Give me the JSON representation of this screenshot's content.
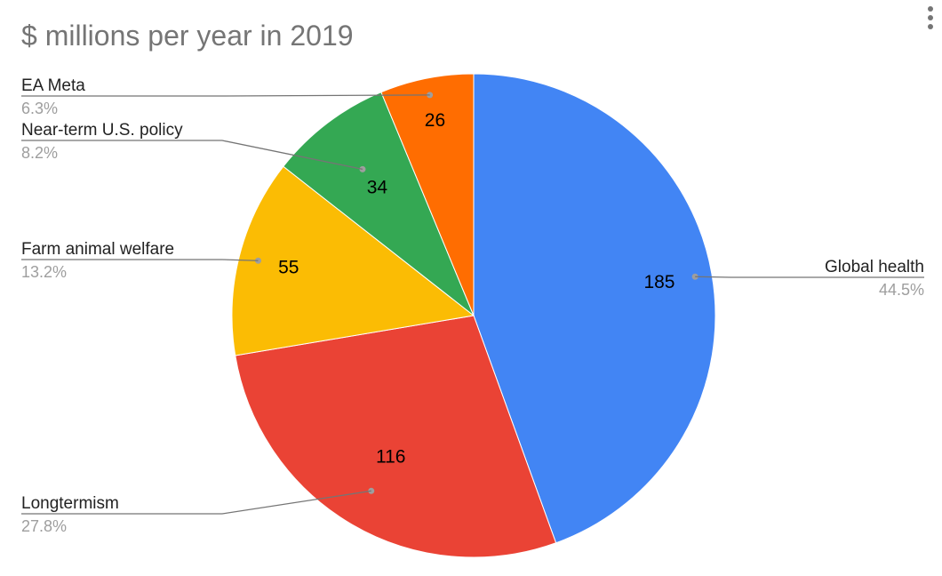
{
  "chart_data": {
    "type": "pie",
    "title": "$ millions per year in 2019",
    "slices": [
      {
        "label": "Global health",
        "value": 185,
        "percent": "44.5%",
        "color": "#4285f4"
      },
      {
        "label": "Longtermism",
        "value": 116,
        "percent": "27.8%",
        "color": "#ea4335"
      },
      {
        "label": "Farm animal welfare",
        "value": 55,
        "percent": "13.2%",
        "color": "#fbbc04"
      },
      {
        "label": "Near-term U.S. policy",
        "value": 34,
        "percent": "8.2%",
        "color": "#34a853"
      },
      {
        "label": "EA Meta",
        "value": 26,
        "percent": "6.3%",
        "color": "#ff6d01"
      }
    ]
  },
  "menu": {
    "icon": "more-vert-icon"
  }
}
